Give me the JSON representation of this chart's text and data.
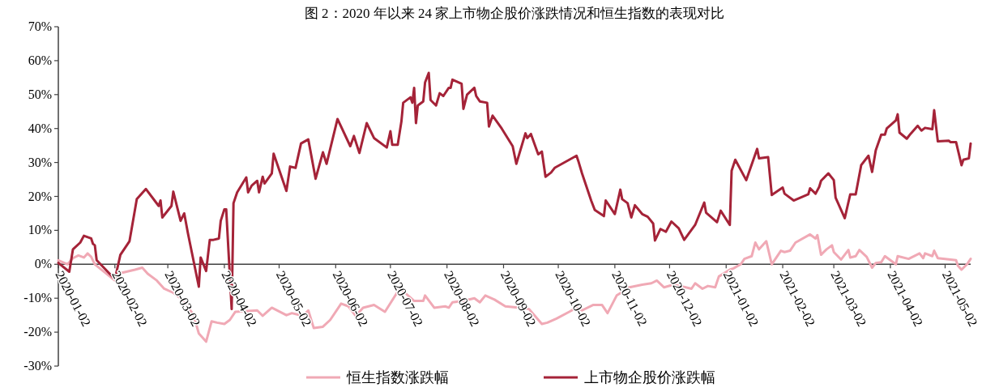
{
  "chart_data": {
    "type": "line",
    "title": "图 2：2020 年以来 24 家上市物企股价涨跌情况和恒生指数的表现对比",
    "xlim": [
      "2020-01-02",
      "2021-05-16"
    ],
    "xticks": [
      "2020-01-02",
      "2020-02-02",
      "2020-03-02",
      "2020-04-02",
      "2020-05-02",
      "2020-06-02",
      "2020-07-02",
      "2020-08-02",
      "2020-09-02",
      "2020-10-02",
      "2020-11-02",
      "2020-12-02",
      "2021-01-02",
      "2021-02-02",
      "2021-03-02",
      "2021-04-02",
      "2021-05-02"
    ],
    "ylim": [
      -30,
      70
    ],
    "yticks": [
      {
        "value": -30,
        "label": "-30%"
      },
      {
        "value": -20,
        "label": "-20%"
      },
      {
        "value": -10,
        "label": "-10%"
      },
      {
        "value": 0,
        "label": "0%"
      },
      {
        "value": 10,
        "label": "10%"
      },
      {
        "value": 20,
        "label": "20%"
      },
      {
        "value": 30,
        "label": "30%"
      },
      {
        "value": 40,
        "label": "40%"
      },
      {
        "value": 50,
        "label": "50%"
      },
      {
        "value": 60,
        "label": "60%"
      },
      {
        "value": 70,
        "label": "70%"
      }
    ],
    "legend": "bottom",
    "series": [
      {
        "name": "恒生指数涨跌幅",
        "color": "#f0a9b5",
        "x": [
          "2020-01-02",
          "2020-01-07",
          "2020-01-10",
          "2020-01-13",
          "2020-01-16",
          "2020-01-18",
          "2020-01-20",
          "2020-01-22",
          "2020-02-02",
          "2020-02-05",
          "2020-02-13",
          "2020-02-17",
          "2020-02-20",
          "2020-02-25",
          "2020-02-29",
          "2020-03-05",
          "2020-03-10",
          "2020-03-16",
          "2020-03-19",
          "2020-03-23",
          "2020-03-26",
          "2020-03-29",
          "2020-04-02",
          "2020-04-05",
          "2020-04-08",
          "2020-04-15",
          "2020-04-20",
          "2020-04-23",
          "2020-04-28",
          "2020-05-06",
          "2020-05-09",
          "2020-05-15",
          "2020-05-18",
          "2020-05-21",
          "2020-05-26",
          "2020-05-30",
          "2020-06-05",
          "2020-06-09",
          "2020-06-13",
          "2020-06-17",
          "2020-06-23",
          "2020-06-29",
          "2020-07-07",
          "2020-07-10",
          "2020-07-15",
          "2020-07-20",
          "2020-07-21",
          "2020-07-26",
          "2020-08-01",
          "2020-08-03",
          "2020-08-05",
          "2020-08-11",
          "2020-08-17",
          "2020-08-20",
          "2020-08-23",
          "2020-08-28",
          "2020-09-03",
          "2020-09-11",
          "2020-09-16",
          "2020-09-23",
          "2020-09-26",
          "2020-10-01",
          "2020-10-08",
          "2020-10-12",
          "2020-10-15",
          "2020-10-21",
          "2020-10-26",
          "2020-10-29",
          "2020-11-03",
          "2020-11-10",
          "2020-11-17",
          "2020-11-22",
          "2020-11-25",
          "2020-11-29",
          "2020-12-04",
          "2020-12-08",
          "2020-12-14",
          "2020-12-16",
          "2020-12-20",
          "2020-12-23",
          "2020-12-27",
          "2020-12-29",
          "2021-01-04",
          "2021-01-06",
          "2021-01-10",
          "2021-01-12",
          "2021-01-16",
          "2021-01-18",
          "2021-01-20",
          "2021-01-24",
          "2021-01-27",
          "2021-02-01",
          "2021-02-03",
          "2021-02-06",
          "2021-02-09",
          "2021-02-17",
          "2021-02-20",
          "2021-02-21",
          "2021-02-23",
          "2021-02-26",
          "2021-03-01",
          "2021-03-02",
          "2021-03-06",
          "2021-03-10",
          "2021-03-11",
          "2021-03-14",
          "2021-03-16",
          "2021-03-20",
          "2021-03-23",
          "2021-03-25",
          "2021-03-28",
          "2021-03-30",
          "2021-04-05",
          "2021-04-06",
          "2021-04-12",
          "2021-04-18",
          "2021-04-20",
          "2021-04-21",
          "2021-04-25",
          "2021-04-26",
          "2021-04-28",
          "2021-05-08",
          "2021-05-09",
          "2021-05-11",
          "2021-05-14",
          "2021-05-16"
        ],
        "values": [
          1.2,
          0,
          1.8,
          2.6,
          2,
          3.2,
          2.2,
          0,
          -4.8,
          -2.6,
          -1.6,
          -1,
          -2.8,
          -4.8,
          -7.2,
          -8.4,
          -10.4,
          -14.8,
          -20.4,
          -22.8,
          -16.8,
          -17.2,
          -17.6,
          -16.4,
          -14,
          -13.8,
          -13.6,
          -15.2,
          -12.8,
          -15,
          -14.4,
          -15.2,
          -13.6,
          -18.8,
          -18.4,
          -16.4,
          -11.6,
          -12.4,
          -15.2,
          -12.8,
          -12,
          -14,
          -7.2,
          -8.4,
          -10.8,
          -10.8,
          -9.2,
          -12.8,
          -12.4,
          -12.8,
          -11.2,
          -10.8,
          -10,
          -11.2,
          -9.2,
          -10.4,
          -12.4,
          -12.8,
          -13.2,
          -17.6,
          -17.2,
          -16,
          -14,
          -12.8,
          -13.6,
          -12,
          -12,
          -14.4,
          -9.2,
          -6.8,
          -6,
          -5.6,
          -4.8,
          -6.8,
          -6,
          -6.4,
          -7.2,
          -5.6,
          -7.2,
          -6.4,
          -6.8,
          -3.6,
          -1.6,
          -1.2,
          0,
          1.6,
          2.4,
          6.4,
          4.4,
          6.8,
          0,
          4,
          3.6,
          4,
          6.4,
          8.8,
          7.6,
          8.6,
          2.8,
          4.4,
          5.6,
          3.6,
          1.4,
          4.2,
          2,
          2.4,
          4.2,
          2.2,
          -1,
          0.4,
          0.6,
          2.4,
          0,
          2.4,
          1.6,
          3.2,
          1.8,
          3.2,
          2.4,
          4,
          1.8,
          1.2,
          -0.4,
          -1.6,
          0,
          1.6
        ]
      },
      {
        "name": "上市物企股价涨跌幅",
        "color": "#a52338",
        "x": [
          "2020-01-02",
          "2020-01-08",
          "2020-01-10",
          "2020-01-14",
          "2020-01-16",
          "2020-01-20",
          "2020-01-21",
          "2020-01-22",
          "2020-01-23",
          "2020-02-02",
          "2020-02-05",
          "2020-02-10",
          "2020-02-14",
          "2020-02-19",
          "2020-02-26",
          "2020-02-27",
          "2020-02-28",
          "2020-03-04",
          "2020-03-05",
          "2020-03-09",
          "2020-03-11",
          "2020-03-13",
          "2020-03-19",
          "2020-03-20",
          "2020-03-23",
          "2020-03-25",
          "2020-03-27",
          "2020-03-30",
          "2020-03-31",
          "2020-04-02",
          "2020-04-03",
          "2020-04-06",
          "2020-04-07",
          "2020-04-09",
          "2020-04-14",
          "2020-04-15",
          "2020-04-17",
          "2020-04-20",
          "2020-04-21",
          "2020-04-23",
          "2020-04-24",
          "2020-04-28",
          "2020-04-29",
          "2020-05-06",
          "2020-05-08",
          "2020-05-11",
          "2020-05-14",
          "2020-05-18",
          "2020-05-22",
          "2020-05-26",
          "2020-05-28",
          "2020-06-03",
          "2020-06-10",
          "2020-06-12",
          "2020-06-15",
          "2020-06-19",
          "2020-06-23",
          "2020-06-30",
          "2020-07-02",
          "2020-07-03",
          "2020-07-06",
          "2020-07-08",
          "2020-07-09",
          "2020-07-13",
          "2020-07-14",
          "2020-07-15",
          "2020-07-16",
          "2020-07-17",
          "2020-07-20",
          "2020-07-21",
          "2020-07-23",
          "2020-07-24",
          "2020-07-27",
          "2020-07-29",
          "2020-07-31",
          "2020-08-03",
          "2020-08-04",
          "2020-08-05",
          "2020-08-10",
          "2020-08-11",
          "2020-08-13",
          "2020-08-17",
          "2020-08-18",
          "2020-08-20",
          "2020-08-24",
          "2020-08-25",
          "2020-08-27",
          "2020-09-01",
          "2020-09-07",
          "2020-09-09",
          "2020-09-14",
          "2020-09-15",
          "2020-09-17",
          "2020-09-21",
          "2020-09-23",
          "2020-09-25",
          "2020-09-28",
          "2020-09-30",
          "2020-10-08",
          "2020-10-12",
          "2020-10-13",
          "2020-10-15",
          "2020-10-19",
          "2020-10-20",
          "2020-10-22",
          "2020-10-27",
          "2020-10-28",
          "2020-11-02",
          "2020-11-05",
          "2020-11-06",
          "2020-11-09",
          "2020-11-11",
          "2020-11-13",
          "2020-11-17",
          "2020-11-20",
          "2020-11-23",
          "2020-11-24",
          "2020-11-27",
          "2020-11-30",
          "2020-12-03",
          "2020-12-07",
          "2020-12-10",
          "2020-12-16",
          "2020-12-21",
          "2020-12-22",
          "2020-12-28",
          "2020-12-30",
          "2021-01-04",
          "2021-01-05",
          "2021-01-07",
          "2021-01-13",
          "2021-01-19",
          "2021-01-20",
          "2021-01-25",
          "2021-01-27",
          "2021-02-02",
          "2021-02-03",
          "2021-02-08",
          "2021-02-16",
          "2021-02-17",
          "2021-02-20",
          "2021-02-22",
          "2021-02-23",
          "2021-02-27",
          "2021-03-02",
          "2021-03-03",
          "2021-03-08",
          "2021-03-11",
          "2021-03-14",
          "2021-03-17",
          "2021-03-21",
          "2021-03-23",
          "2021-03-25",
          "2021-03-28",
          "2021-03-30",
          "2021-03-31",
          "2021-04-05",
          "2021-04-06",
          "2021-04-07",
          "2021-04-11",
          "2021-04-13",
          "2021-04-17",
          "2021-04-19",
          "2021-04-21",
          "2021-04-25",
          "2021-04-26",
          "2021-04-28",
          "2021-05-04",
          "2021-05-05",
          "2021-05-08",
          "2021-05-11",
          "2021-05-12",
          "2021-05-15",
          "2021-05-16"
        ],
        "values": [
          0.4,
          -2.2,
          4.4,
          6.4,
          8.4,
          7.6,
          6,
          5.6,
          1.2,
          -4.4,
          2.8,
          6.8,
          19.2,
          22.2,
          17.2,
          18.8,
          13.8,
          17.2,
          21.4,
          12.8,
          15,
          9.2,
          -6.6,
          2,
          -2,
          7.2,
          7.2,
          7.6,
          12.8,
          16.2,
          16.2,
          -13.2,
          18,
          21.2,
          25.6,
          21.2,
          23.2,
          24.6,
          21.2,
          25.8,
          23.8,
          26.8,
          32.6,
          21.6,
          28.8,
          28.4,
          35.6,
          36.8,
          25.2,
          33,
          29.6,
          42.8,
          34.8,
          37.8,
          32.8,
          41.6,
          37.2,
          34.4,
          39.2,
          35.2,
          35.2,
          42,
          47.6,
          49.2,
          47.6,
          52,
          41.6,
          46.8,
          48,
          53.6,
          56.4,
          48.4,
          46.8,
          50.4,
          49.6,
          52,
          52,
          54.4,
          53.2,
          45.8,
          50,
          52,
          49.6,
          48,
          47.6,
          40.6,
          43.8,
          40,
          34.8,
          29.6,
          38.6,
          37.2,
          38.4,
          32.4,
          33.2,
          25.8,
          27,
          28.4,
          30.8,
          32,
          30.4,
          26.8,
          20.4,
          18.8,
          16,
          14.2,
          18.8,
          14.8,
          22,
          19.2,
          18,
          13.8,
          17.4,
          14.8,
          14,
          12,
          7,
          10.4,
          9.6,
          12.6,
          10.6,
          7.2,
          11.6,
          18.2,
          15.2,
          12.4,
          15.8,
          11.6,
          27.6,
          30.8,
          24.8,
          34,
          31.2,
          31.6,
          20.4,
          22.6,
          20.8,
          18.8,
          20.6,
          22.4,
          20.8,
          22.8,
          24.6,
          26.8,
          24.8,
          19.6,
          13.6,
          20.6,
          20.6,
          29.2,
          32,
          27.2,
          33.6,
          38.2,
          38.2,
          40,
          42.4,
          44.2,
          38.8,
          37,
          38.4,
          40.8,
          39.4,
          40.2,
          39.8,
          45.4,
          36.2,
          36.4,
          36,
          36,
          29.2,
          30.8,
          31.2,
          35.6
        ]
      }
    ]
  }
}
